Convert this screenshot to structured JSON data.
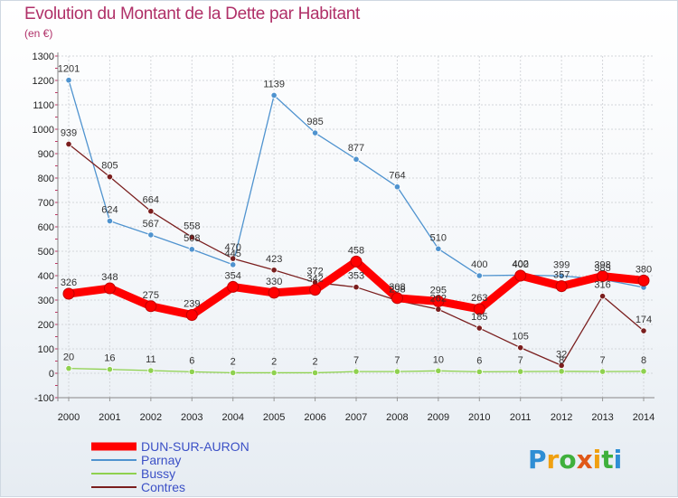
{
  "chart_data": {
    "type": "line",
    "title": "Evolution du Montant de la Dette par Habitant",
    "subtitle": "(en €)",
    "ylim": [
      -100,
      1300
    ],
    "ytick_labels": [
      "-100",
      "0",
      "100",
      "200",
      "300",
      "400",
      "500",
      "600",
      "700",
      "800",
      "900",
      "1000",
      "1100",
      "1200",
      "1300"
    ],
    "categories": [
      "2000",
      "2001",
      "2002",
      "2003",
      "2004",
      "2005",
      "2006",
      "2007",
      "2008",
      "2009",
      "2010",
      "2011",
      "2012",
      "2013",
      "2014"
    ],
    "grid": true,
    "legend_position": "bottom-left",
    "series": [
      {
        "name": "DUN-SUR-AURON",
        "color": "#ff0000",
        "values": [
          326,
          348,
          275,
          239,
          354,
          330,
          342,
          458,
          308,
          295,
          263,
          400,
          357,
          398,
          380
        ],
        "labels": [
          "326",
          "348",
          "275",
          "239",
          "354",
          "330",
          "342",
          "458",
          "308",
          "295",
          "263",
          "400",
          "357",
          "398",
          "380"
        ]
      },
      {
        "name": "Parnay",
        "color": "#4f93cf",
        "values": [
          1201,
          624,
          567,
          508,
          445,
          1139,
          985,
          877,
          764,
          510,
          400,
          402,
          399,
          385,
          352
        ],
        "labels": [
          "1201",
          "624",
          "567",
          "508",
          "445",
          "1139",
          "985",
          "877",
          "764",
          "510",
          "400",
          "402",
          "399",
          "385",
          ""
        ]
      },
      {
        "name": "Bussy",
        "color": "#8fd14f",
        "values": [
          20,
          16,
          11,
          6,
          2,
          2,
          2,
          7,
          7,
          10,
          6,
          7,
          8,
          7,
          8
        ],
        "labels": [
          "20",
          "16",
          "11",
          "6",
          "2",
          "2",
          "2",
          "7",
          "7",
          "10",
          "6",
          "7",
          "8",
          "7",
          "8"
        ]
      },
      {
        "name": "Contres",
        "color": "#7a1e1e",
        "values": [
          939,
          805,
          664,
          558,
          470,
          423,
          372,
          353,
          298,
          262,
          185,
          105,
          32,
          316,
          174
        ],
        "labels": [
          "939",
          "805",
          "664",
          "558",
          "470",
          "423",
          "372",
          "353",
          "298",
          "262",
          "185",
          "105",
          "32",
          "316",
          "174"
        ]
      }
    ]
  },
  "legend": {
    "dun_sur_auron": "DUN-SUR-AURON",
    "parnay": "Parnay",
    "bussy": "Bussy",
    "contres": "Contres"
  },
  "logo": {
    "text": "Proxiti",
    "colors": [
      "#2e8ed4",
      "#f0a010",
      "#3fb03c",
      "#e05818"
    ]
  }
}
